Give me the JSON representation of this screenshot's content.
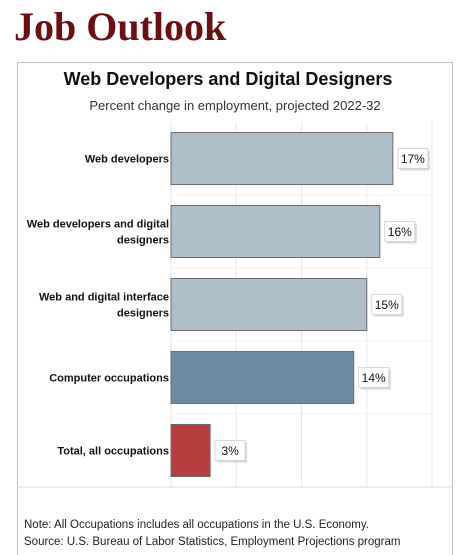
{
  "page": {
    "heading": "Job Outlook"
  },
  "chart_data": {
    "type": "bar",
    "orientation": "horizontal",
    "title": "Web Developers and Digital Designers",
    "subtitle": "Percent change in employment, projected 2022-32",
    "categories": [
      [
        "Web developers"
      ],
      [
        "Web developers and digital",
        "designers"
      ],
      [
        "Web and digital interface",
        "designers"
      ],
      [
        "Computer occupations"
      ],
      [
        "Total, all occupations"
      ]
    ],
    "values": [
      17,
      16,
      15,
      14,
      3
    ],
    "value_labels": [
      "17%",
      "16%",
      "15%",
      "14%",
      "3%"
    ],
    "bar_colors": [
      "#aebfcc",
      "#aebfcc",
      "#aebfcc",
      "#6e8ba3",
      "#b83d3f"
    ],
    "bar_stroke": "#6b6b6b",
    "xlim": [
      0,
      20
    ],
    "grid": true,
    "notes": [
      "Note: All Occupations includes all occupations in the U.S. Economy.",
      "Source: U.S. Bureau of Labor Statistics, Employment Projections program"
    ]
  }
}
